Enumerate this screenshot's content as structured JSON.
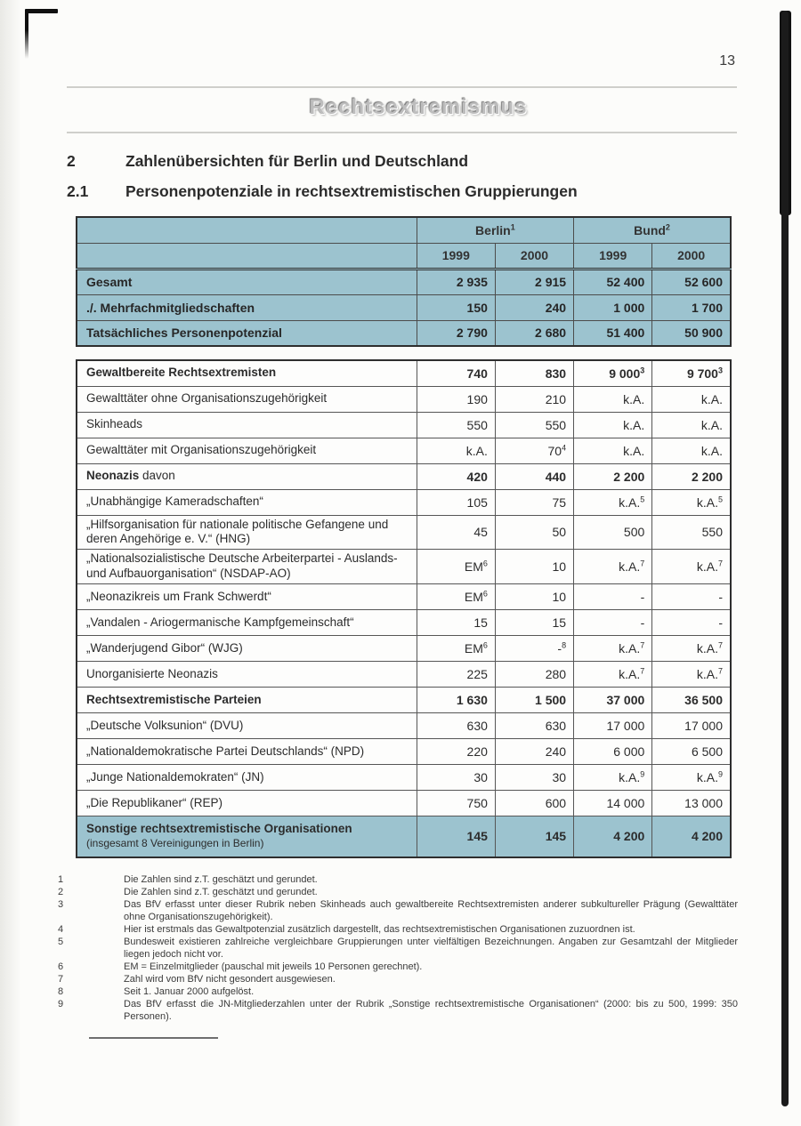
{
  "page": {
    "number": "13",
    "banner": "Rechtsextremismus"
  },
  "colors": {
    "table_accent": "#9cc3cf"
  },
  "sections": {
    "s2": {
      "num": "2",
      "title": "Zahlenübersichten für Berlin und Deutschland"
    },
    "s21": {
      "num": "2.1",
      "title": "Personenpotenziale in rechtsextremistischen Gruppierungen"
    }
  },
  "summary_table": {
    "col_groups": [
      {
        "label": "Berlin",
        "sup": "1"
      },
      {
        "label": "Bund",
        "sup": "2"
      }
    ],
    "years": [
      "1999",
      "2000",
      "1999",
      "2000"
    ],
    "rows": [
      {
        "label": "Gesamt",
        "values": [
          {
            "v": "2 935"
          },
          {
            "v": "2 915"
          },
          {
            "v": "52 400"
          },
          {
            "v": "52 600"
          }
        ]
      },
      {
        "label": "./. Mehrfachmitgliedschaften",
        "values": [
          {
            "v": "150"
          },
          {
            "v": "240"
          },
          {
            "v": "1 000"
          },
          {
            "v": "1 700"
          }
        ]
      },
      {
        "label": "Tatsächliches Personenpotenzial",
        "values": [
          {
            "v": "2 790"
          },
          {
            "v": "2 680"
          },
          {
            "v": "51 400"
          },
          {
            "v": "50 900"
          }
        ]
      }
    ]
  },
  "detail_table": {
    "rows": [
      {
        "label": "Gewaltbereite Rechtsextremisten",
        "bold": true,
        "values": [
          {
            "v": "740"
          },
          {
            "v": "830"
          },
          {
            "v": "9 000",
            "sup": "3"
          },
          {
            "v": "9 700",
            "sup": "3"
          }
        ]
      },
      {
        "label": "Gewalttäter ohne Organisationszugehörigkeit",
        "values": [
          {
            "v": "190"
          },
          {
            "v": "210"
          },
          {
            "v": "k.A."
          },
          {
            "v": "k.A."
          }
        ]
      },
      {
        "label": "Skinheads",
        "values": [
          {
            "v": "550"
          },
          {
            "v": "550"
          },
          {
            "v": "k.A."
          },
          {
            "v": "k.A."
          }
        ]
      },
      {
        "label": "Gewalttäter mit Organisationszugehörigkeit",
        "values": [
          {
            "v": "k.A."
          },
          {
            "v": "70",
            "sup": "4"
          },
          {
            "v": "k.A."
          },
          {
            "v": "k.A."
          }
        ]
      },
      {
        "label": "Neonazis",
        "label_rest": " davon",
        "bold": true,
        "values": [
          {
            "v": "420"
          },
          {
            "v": "440"
          },
          {
            "v": "2 200"
          },
          {
            "v": "2 200"
          }
        ]
      },
      {
        "label": "„Unabhängige Kameradschaften“",
        "values": [
          {
            "v": "105"
          },
          {
            "v": "75"
          },
          {
            "v": "k.A.",
            "sup": "5"
          },
          {
            "v": "k.A.",
            "sup": "5"
          }
        ]
      },
      {
        "label": "„Hilfsorganisation für nationale politische Gefangene und deren Angehörige e. V.“ (HNG)",
        "values": [
          {
            "v": "45"
          },
          {
            "v": "50"
          },
          {
            "v": "500"
          },
          {
            "v": "550"
          }
        ]
      },
      {
        "label": "„Nationalsozialistische Deutsche Arbeiterpartei - Auslands- und Aufbauorganisation“ (NSDAP-AO)",
        "values": [
          {
            "v": "EM",
            "sup": "6"
          },
          {
            "v": "10"
          },
          {
            "v": "k.A.",
            "sup": "7"
          },
          {
            "v": "k.A.",
            "sup": "7"
          }
        ]
      },
      {
        "label": "„Neonazikreis um Frank Schwerdt“",
        "values": [
          {
            "v": "EM",
            "sup": "6"
          },
          {
            "v": "10"
          },
          {
            "v": "-"
          },
          {
            "v": "-"
          }
        ]
      },
      {
        "label": "„Vandalen - Ariogermanische Kampfgemeinschaft“",
        "values": [
          {
            "v": "15"
          },
          {
            "v": "15"
          },
          {
            "v": "-"
          },
          {
            "v": "-"
          }
        ]
      },
      {
        "label": "„Wanderjugend Gibor“ (WJG)",
        "values": [
          {
            "v": "EM",
            "sup": "6"
          },
          {
            "v": "-",
            "sup": "8"
          },
          {
            "v": "k.A.",
            "sup": "7"
          },
          {
            "v": "k.A.",
            "sup": "7"
          }
        ]
      },
      {
        "label": "Unorganisierte Neonazis",
        "values": [
          {
            "v": "225"
          },
          {
            "v": "280"
          },
          {
            "v": "k.A.",
            "sup": "7"
          },
          {
            "v": "k.A.",
            "sup": "7"
          }
        ]
      },
      {
        "label": "Rechtsextremistische Parteien",
        "bold": true,
        "values": [
          {
            "v": "1 630"
          },
          {
            "v": "1 500"
          },
          {
            "v": "37 000"
          },
          {
            "v": "36 500"
          }
        ]
      },
      {
        "label": "„Deutsche Volksunion“ (DVU)",
        "values": [
          {
            "v": "630"
          },
          {
            "v": "630"
          },
          {
            "v": "17 000"
          },
          {
            "v": "17 000"
          }
        ]
      },
      {
        "label": "„Nationaldemokratische Partei Deutschlands“ (NPD)",
        "values": [
          {
            "v": "220"
          },
          {
            "v": "240"
          },
          {
            "v": "6 000"
          },
          {
            "v": "6 500"
          }
        ]
      },
      {
        "label": "„Junge Nationaldemokraten“ (JN)",
        "values": [
          {
            "v": "30"
          },
          {
            "v": "30"
          },
          {
            "v": "k.A.",
            "sup": "9"
          },
          {
            "v": "k.A.",
            "sup": "9"
          }
        ]
      },
      {
        "label": "„Die Republikaner“ (REP)",
        "values": [
          {
            "v": "750"
          },
          {
            "v": "600"
          },
          {
            "v": "14 000"
          },
          {
            "v": "13 000"
          }
        ]
      },
      {
        "label": "Sonstige rechtsextremistische Organisationen",
        "sublabel": "(insgesamt 8 Vereinigungen in Berlin)",
        "bold": true,
        "highlight": true,
        "values": [
          {
            "v": "145"
          },
          {
            "v": "145"
          },
          {
            "v": "4 200"
          },
          {
            "v": "4 200"
          }
        ]
      }
    ]
  },
  "footnotes": [
    {
      "num": "1",
      "text": "Die Zahlen sind z.T. geschätzt und gerundet."
    },
    {
      "num": "2",
      "text": "Die Zahlen sind z.T. geschätzt und gerundet."
    },
    {
      "num": "3",
      "text": "Das BfV erfasst unter dieser Rubrik neben Skinheads auch gewaltbereite Rechtsextremisten anderer subkultureller Prägung (Gewalttäter ohne Organisationszugehörigkeit)."
    },
    {
      "num": "4",
      "text": "Hier ist erstmals das Gewaltpotenzial zusätzlich dargestellt, das rechtsextremistischen Organisationen zuzuordnen ist."
    },
    {
      "num": "5",
      "text": "Bundesweit existieren zahlreiche vergleichbare Gruppierungen unter vielfältigen Bezeichnungen. Angaben zur Gesamtzahl der Mitglieder liegen jedoch nicht vor."
    },
    {
      "num": "6",
      "text": "EM = Einzelmitglieder (pauschal mit jeweils 10 Personen gerechnet)."
    },
    {
      "num": "7",
      "text": "Zahl wird vom BfV nicht gesondert ausgewiesen."
    },
    {
      "num": "8",
      "text": "Seit 1. Januar 2000 aufgelöst."
    },
    {
      "num": "9",
      "text": "Das BfV erfasst die JN-Mitgliederzahlen unter der Rubrik „Sonstige rechtsextremistische Organisationen“ (2000: bis zu 500, 1999: 350 Personen)."
    }
  ]
}
